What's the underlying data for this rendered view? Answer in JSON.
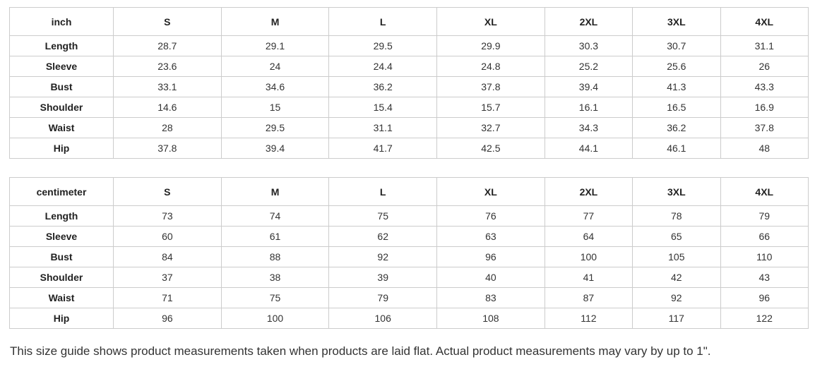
{
  "tables": [
    {
      "unit_label": "inch",
      "sizes": [
        "S",
        "M",
        "L",
        "XL",
        "2XL",
        "3XL",
        "4XL"
      ],
      "rows": [
        {
          "label": "Length",
          "values": [
            "28.7",
            "29.1",
            "29.5",
            "29.9",
            "30.3",
            "30.7",
            "31.1"
          ]
        },
        {
          "label": "Sleeve",
          "values": [
            "23.6",
            "24",
            "24.4",
            "24.8",
            "25.2",
            "25.6",
            "26"
          ]
        },
        {
          "label": "Bust",
          "values": [
            "33.1",
            "34.6",
            "36.2",
            "37.8",
            "39.4",
            "41.3",
            "43.3"
          ]
        },
        {
          "label": "Shoulder",
          "values": [
            "14.6",
            "15",
            "15.4",
            "15.7",
            "16.1",
            "16.5",
            "16.9"
          ]
        },
        {
          "label": "Waist",
          "values": [
            "28",
            "29.5",
            "31.1",
            "32.7",
            "34.3",
            "36.2",
            "37.8"
          ]
        },
        {
          "label": "Hip",
          "values": [
            "37.8",
            "39.4",
            "41.7",
            "42.5",
            "44.1",
            "46.1",
            "48"
          ]
        }
      ]
    },
    {
      "unit_label": "centimeter",
      "sizes": [
        "S",
        "M",
        "L",
        "XL",
        "2XL",
        "3XL",
        "4XL"
      ],
      "rows": [
        {
          "label": "Length",
          "values": [
            "73",
            "74",
            "75",
            "76",
            "77",
            "78",
            "79"
          ]
        },
        {
          "label": "Sleeve",
          "values": [
            "60",
            "61",
            "62",
            "63",
            "64",
            "65",
            "66"
          ]
        },
        {
          "label": "Bust",
          "values": [
            "84",
            "88",
            "92",
            "96",
            "100",
            "105",
            "110"
          ]
        },
        {
          "label": "Shoulder",
          "values": [
            "37",
            "38",
            "39",
            "40",
            "41",
            "42",
            "43"
          ]
        },
        {
          "label": "Waist",
          "values": [
            "71",
            "75",
            "79",
            "83",
            "87",
            "92",
            "96"
          ]
        },
        {
          "label": "Hip",
          "values": [
            "96",
            "100",
            "106",
            "108",
            "112",
            "117",
            "122"
          ]
        }
      ]
    }
  ],
  "footer": {
    "note": "This size guide shows product measurements taken when products are laid flat. Actual product measurements may vary by up to 1\"."
  },
  "colors": {
    "border": "#cccccc",
    "header_text": "#222222",
    "body_text": "#333333",
    "background": "#ffffff"
  }
}
